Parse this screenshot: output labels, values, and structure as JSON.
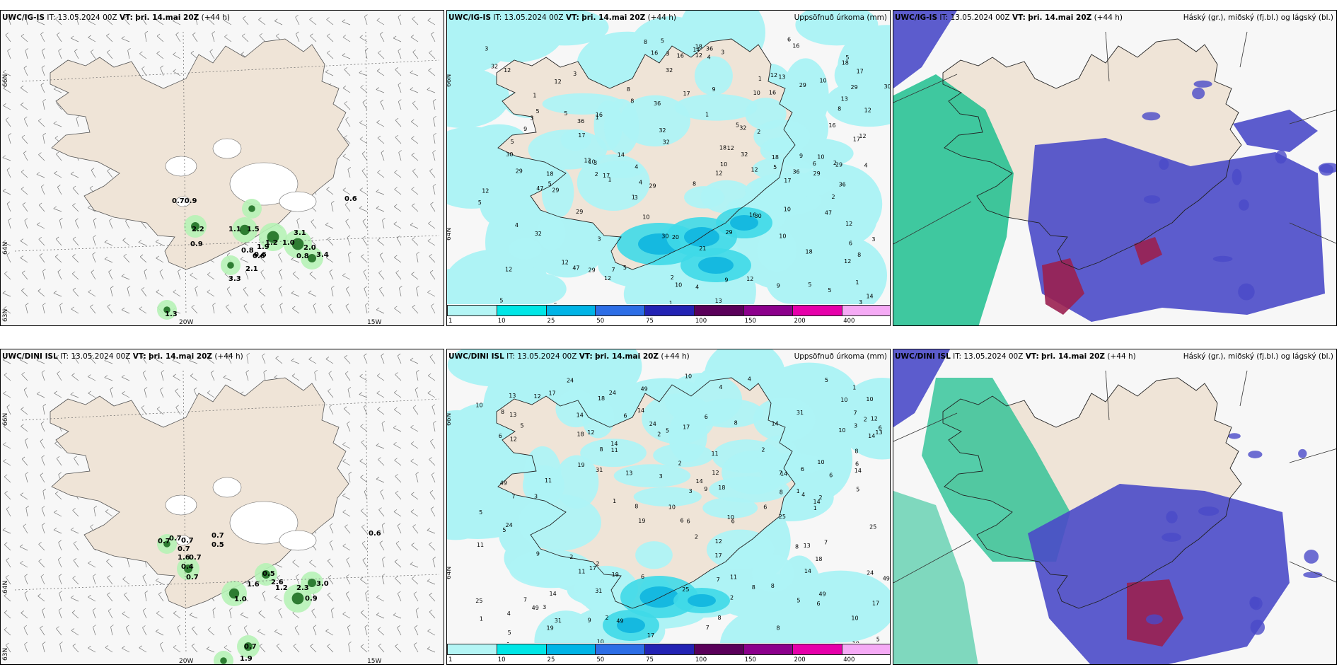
{
  "rows": [
    {
      "panels": [
        {
          "title_model": "UWC/IG-IS",
          "title_it_label": "IT:",
          "title_it": "13.05.2024 00Z",
          "title_vt_label": "VT:",
          "title_vt": "þri. 14.mai 20Z",
          "title_lead": "(+44 h)",
          "right_title": ""
        },
        {
          "title_model": "UWC/IG-IS",
          "title_it_label": "IT:",
          "title_it": "13.05.2024 00Z",
          "title_vt_label": "VT:",
          "title_vt": "þri. 14.mai 20Z",
          "title_lead": "(+44 h)",
          "right_title": "Uppsöfnuð úrkoma (mm)"
        },
        {
          "title_model": "UWC/IG-IS",
          "title_it_label": "IT:",
          "title_it": "13.05.2024 00Z",
          "title_vt_label": "VT:",
          "title_vt": "þri. 14.mai 20Z",
          "title_lead": "(+44 h)",
          "right_title": "Háský (gr.), miðský (fj.bl.) og lágský (bl.)"
        }
      ]
    },
    {
      "panels": [
        {
          "title_model": "UWC/DINI ISL",
          "title_it_label": "IT:",
          "title_it": "13.05.2024 00Z",
          "title_vt_label": "VT:",
          "title_vt": "þri. 14.mai 20Z",
          "title_lead": "(+44 h)",
          "right_title": ""
        },
        {
          "title_model": "UWC/DINI ISL",
          "title_it_label": "IT:",
          "title_it": "13.05.2024 00Z",
          "title_vt_label": "VT:",
          "title_vt": "þri. 14.mai 20Z",
          "title_lead": "(+44 h)",
          "right_title": "Uppsöfnuð úrkoma (mm)"
        },
        {
          "title_model": "UWC/DINI ISL",
          "title_it_label": "IT:",
          "title_it": "13.05.2024 00Z",
          "title_vt_label": "VT:",
          "title_vt": "þri. 14.mai 20Z",
          "title_lead": "(+44 h)",
          "right_title": "Háský (gr.), miðský (fj.bl.) og lágský (bl.)"
        }
      ]
    }
  ],
  "axis_labels": {
    "lat66": "66N",
    "lat64": "64N",
    "lat63": "63N",
    "lon20": "20W",
    "lon15": "15W"
  },
  "colorbar": {
    "ticks": [
      "1",
      "10",
      "25",
      "50",
      "75",
      "100",
      "150",
      "200",
      "400"
    ],
    "colors": [
      "#b4f5f5",
      "#00e6e6",
      "#00b4e6",
      "#2d6ee6",
      "#2323b4",
      "#5a005a",
      "#8c008c",
      "#e600aa",
      "#f5aaf5"
    ]
  },
  "colors": {
    "land": "#efe4d7",
    "sea": "#f7f7f7",
    "precip_light": "#aef3f5",
    "precip_mid": "#3fd9e8",
    "precip_heavy": "#15b9e0",
    "cloud_high": "#1ebf8f",
    "cloud_mid": "#4a4ac8",
    "cloud_low": "#9a2050"
  },
  "map_labels": {
    "row0_wind": [
      "0.70.9",
      "2.2",
      "1.1",
      "1.5",
      "0.9",
      "0.8",
      "0.6",
      "1.9",
      "1.2",
      "1.0",
      "3.1",
      "2.0",
      "0.8",
      "0.6",
      "3.4",
      "2.1",
      "3.3",
      "0.6",
      "1.3"
    ],
    "row1_wind": [
      "0.7",
      "0.7",
      "0.7",
      "0.7",
      "1.6",
      "0.7",
      "0.4",
      "0.7",
      "0.7",
      "0.5",
      "1.0",
      "1.6",
      "0.5",
      "2.6",
      "1.2",
      "2.3",
      "3.0",
      "0.9",
      "0.6",
      "0.7",
      "1.9"
    ],
    "row0_precip": [
      "10",
      "13",
      "5",
      "4",
      "6",
      "7",
      "12",
      "10",
      "8",
      "21",
      "36",
      "32",
      "29",
      "47",
      "30",
      "20",
      "18",
      "16",
      "14",
      "12",
      "17",
      "9",
      "5",
      "3",
      "2",
      "1"
    ],
    "row1_precip": [
      "10",
      "14",
      "6",
      "5",
      "4",
      "8",
      "7",
      "10",
      "12",
      "11",
      "49",
      "24",
      "19",
      "17",
      "18",
      "14",
      "25",
      "31",
      "13",
      "9",
      "6",
      "3",
      "2",
      "1"
    ]
  }
}
